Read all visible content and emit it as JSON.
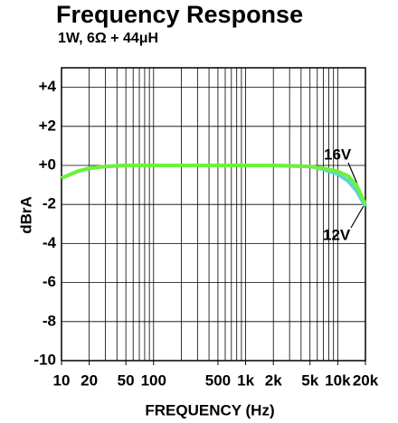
{
  "chart_data": {
    "type": "line",
    "title": "Frequency Response",
    "subtitle": "1W, 6Ω + 44μH",
    "x_label": "FREQUENCY (Hz)",
    "y_label": "dBrA",
    "x_scale": "log",
    "grid": true,
    "minor_xgrid": true,
    "x": [
      10,
      15,
      20,
      30,
      50,
      100,
      200,
      500,
      1000,
      2000,
      5000,
      7000,
      10000,
      13000,
      16000,
      20000
    ],
    "series": [
      {
        "name": "12V",
        "color": "#5fd3d0",
        "values": [
          -0.65,
          -0.3,
          -0.15,
          -0.05,
          0,
          0,
          0,
          0,
          0,
          0,
          -0.05,
          -0.2,
          -0.45,
          -0.8,
          -1.3,
          -2.1
        ]
      },
      {
        "name": "16V",
        "color": "#6cf23a",
        "values": [
          -0.65,
          -0.3,
          -0.15,
          -0.05,
          0,
          0,
          0,
          0,
          0,
          0,
          -0.05,
          -0.15,
          -0.3,
          -0.55,
          -1.0,
          -2.0
        ]
      }
    ],
    "xlim": [
      10,
      20000
    ],
    "xticks": [
      10,
      20,
      50,
      100,
      500,
      {
        "value": 1000,
        "label": "1k"
      },
      {
        "value": 2000,
        "label": "2k"
      },
      {
        "value": 5000,
        "label": "5k"
      },
      {
        "value": 10000,
        "label": "10k"
      },
      {
        "value": 20000,
        "label": "20k"
      }
    ],
    "ylim": [
      -10,
      5
    ],
    "yticks": [
      {
        "value": 4,
        "label": "+4"
      },
      {
        "value": 2,
        "label": "+2"
      },
      {
        "value": 0,
        "label": "+0"
      },
      -2,
      -4,
      -6,
      -8,
      -10
    ]
  }
}
